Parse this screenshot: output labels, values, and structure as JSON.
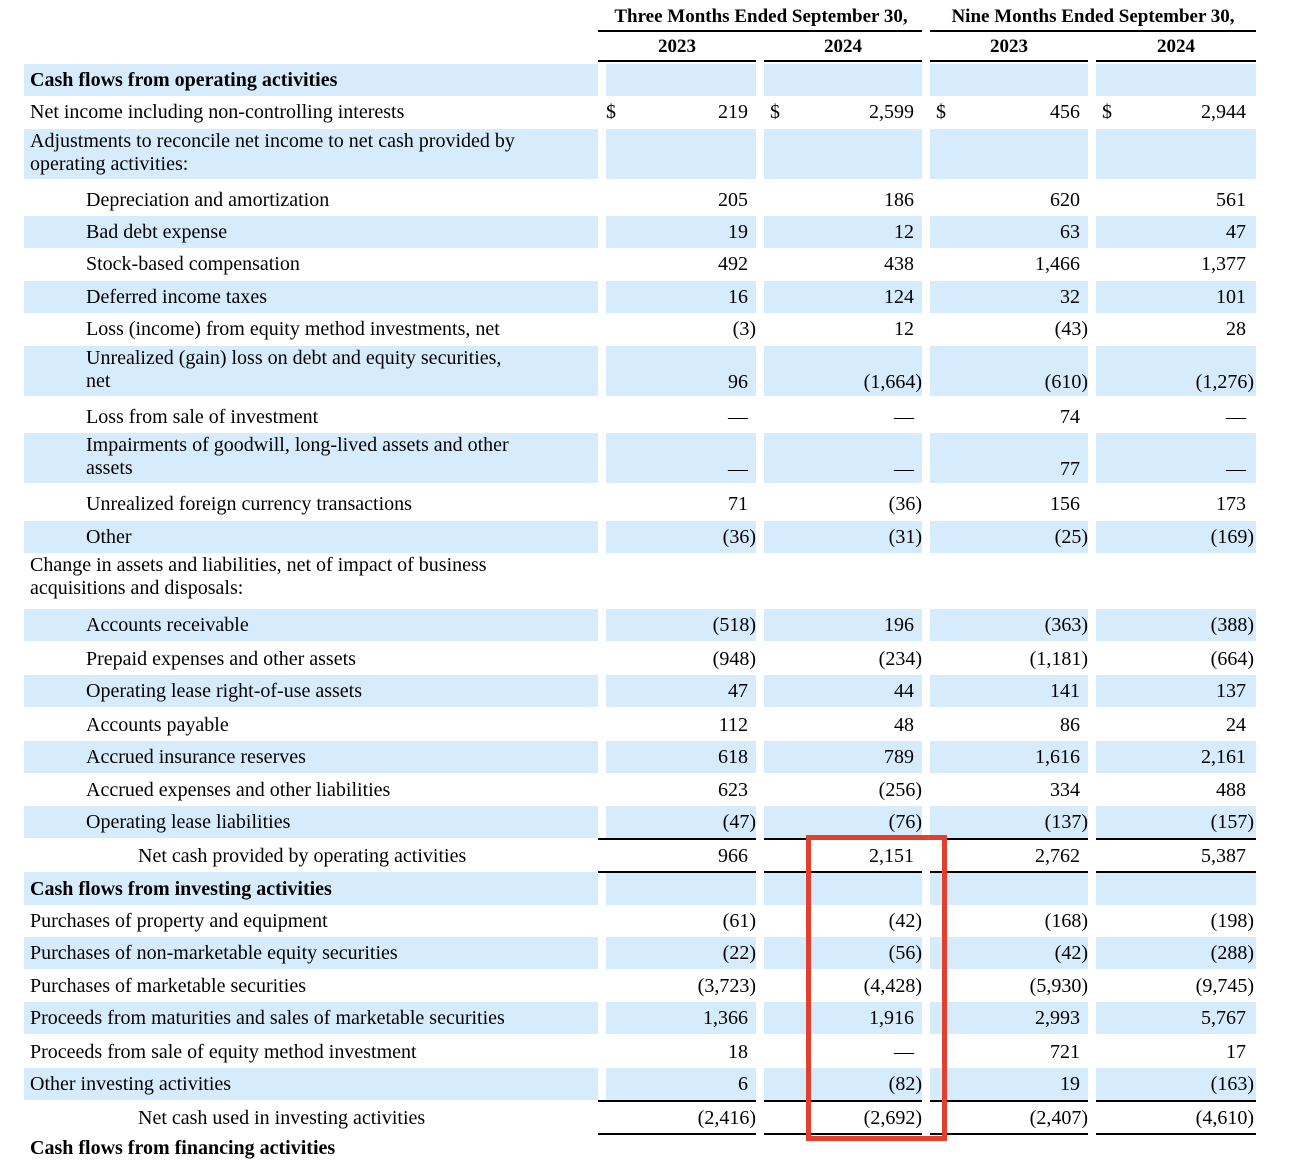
{
  "header": {
    "groups": [
      {
        "label": "Three Months Ended September 30,",
        "years": [
          "2023",
          "2024"
        ]
      },
      {
        "label": "Nine Months Ended September 30,",
        "years": [
          "2023",
          "2024"
        ]
      }
    ]
  },
  "rows": [
    {
      "label": "Cash flows from operating activities",
      "type": "section",
      "values": [
        "",
        "",
        "",
        ""
      ]
    },
    {
      "label": "Net income including non-controlling interests",
      "values": [
        "219",
        "2,599",
        "456",
        "2,944"
      ],
      "currency": "$"
    },
    {
      "label": "Adjustments to reconcile net income to net cash provided by operating activities:",
      "label_lines": [
        "Adjustments to reconcile net income to net cash provided by",
        "operating activities:"
      ],
      "values": [
        "",
        "",
        "",
        ""
      ]
    },
    {
      "label": "Depreciation and amortization",
      "values": [
        "205",
        "186",
        "620",
        "561"
      ]
    },
    {
      "label": "Bad debt expense",
      "values": [
        "19",
        "12",
        "63",
        "47"
      ]
    },
    {
      "label": "Stock-based compensation",
      "values": [
        "492",
        "438",
        "1,466",
        "1,377"
      ]
    },
    {
      "label": "Deferred income taxes",
      "values": [
        "16",
        "124",
        "32",
        "101"
      ]
    },
    {
      "label": "Loss (income) from equity method investments, net",
      "values": [
        "(3)",
        "12",
        "(43)",
        "28"
      ]
    },
    {
      "label": "Unrealized (gain) loss on debt and equity securities, net",
      "label_lines": [
        "Unrealized (gain) loss on debt and equity securities,",
        "net"
      ],
      "values": [
        "96",
        "(1,664)",
        "(610)",
        "(1,276)"
      ]
    },
    {
      "label": "Loss from sale of investment",
      "values": [
        "—",
        "—",
        "74",
        "—"
      ]
    },
    {
      "label": "Impairments of goodwill, long-lived assets and other assets",
      "label_lines": [
        "Impairments of goodwill, long-lived assets and other",
        "assets"
      ],
      "values": [
        "—",
        "—",
        "77",
        "—"
      ]
    },
    {
      "label": "Unrealized foreign currency transactions",
      "values": [
        "71",
        "(36)",
        "156",
        "173"
      ]
    },
    {
      "label": "Other",
      "values": [
        "(36)",
        "(31)",
        "(25)",
        "(169)"
      ]
    },
    {
      "label": "Change in assets and liabilities, net of impact of business acquisitions and disposals:",
      "label_lines": [
        "Change in assets and liabilities, net of impact of business",
        "acquisitions and disposals:"
      ],
      "values": [
        "",
        "",
        "",
        ""
      ]
    },
    {
      "label": "Accounts receivable",
      "values": [
        "(518)",
        "196",
        "(363)",
        "(388)"
      ]
    },
    {
      "label": "Prepaid expenses and other assets",
      "values": [
        "(948)",
        "(234)",
        "(1,181)",
        "(664)"
      ]
    },
    {
      "label": "Operating lease right-of-use assets",
      "values": [
        "47",
        "44",
        "141",
        "137"
      ]
    },
    {
      "label": "Accounts payable",
      "values": [
        "112",
        "48",
        "86",
        "24"
      ]
    },
    {
      "label": "Accrued insurance reserves",
      "values": [
        "618",
        "789",
        "1,616",
        "2,161"
      ]
    },
    {
      "label": "Accrued expenses and other liabilities",
      "values": [
        "623",
        "(256)",
        "334",
        "488"
      ]
    },
    {
      "label": "Operating lease liabilities",
      "values": [
        "(47)",
        "(76)",
        "(137)",
        "(157)"
      ]
    },
    {
      "label": "Net cash provided by operating activities",
      "type": "total",
      "values": [
        "966",
        "2,151",
        "2,762",
        "5,387"
      ]
    },
    {
      "label": "Cash flows from investing activities",
      "type": "section",
      "values": [
        "",
        "",
        "",
        ""
      ]
    },
    {
      "label": "Purchases of property and equipment",
      "values": [
        "(61)",
        "(42)",
        "(168)",
        "(198)"
      ]
    },
    {
      "label": "Purchases of non-marketable equity securities",
      "values": [
        "(22)",
        "(56)",
        "(42)",
        "(288)"
      ]
    },
    {
      "label": "Purchases of marketable securities",
      "values": [
        "(3,723)",
        "(4,428)",
        "(5,930)",
        "(9,745)"
      ]
    },
    {
      "label": "Proceeds from maturities and sales of marketable securities",
      "values": [
        "1,366",
        "1,916",
        "2,993",
        "5,767"
      ]
    },
    {
      "label": "Proceeds from sale of equity method investment",
      "values": [
        "18",
        "—",
        "721",
        "17"
      ]
    },
    {
      "label": "Other investing activities",
      "values": [
        "6",
        "(82)",
        "19",
        "(163)"
      ]
    },
    {
      "label": "Net cash used in investing activities",
      "type": "total",
      "values": [
        "(2,416)",
        "(2,692)",
        "(2,407)",
        "(4,610)"
      ]
    }
  ],
  "cutoff_text": "Cash flows from financing activities",
  "highlight": {
    "color": "#e1402e",
    "column": "Three Months Ended September 30, 2024"
  },
  "colors": {
    "row_shade": "#d6ebfb",
    "text": "#000000"
  }
}
